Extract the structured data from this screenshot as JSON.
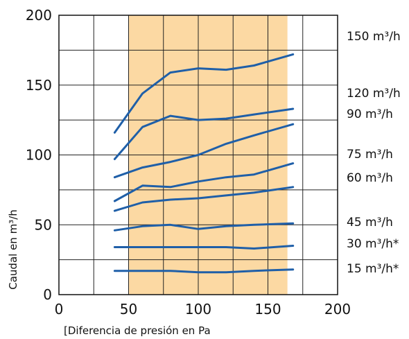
{
  "chart_data": {
    "type": "line",
    "title": "",
    "xlabel": "[Diferencia de presión en Pa",
    "ylabel": "Caudal en m³/h",
    "xlim": [
      0,
      200
    ],
    "ylim": [
      0,
      200
    ],
    "xticks": [
      "0",
      "50",
      "100",
      "150",
      "200"
    ],
    "yticks": [
      "0",
      "50",
      "100",
      "150",
      "200"
    ],
    "grid": true,
    "legend": "right, labels beside each curve",
    "highlight_band": {
      "x": [
        50,
        164
      ],
      "color": "#fcd9a3"
    },
    "line_color": "#1f5fa8",
    "x": [
      40,
      60,
      80,
      100,
      120,
      140,
      168
    ],
    "series": [
      {
        "name": "150 m³/h",
        "values": [
          116,
          144,
          159,
          162,
          161,
          164,
          172
        ]
      },
      {
        "name": "120 m³/h",
        "values": [
          97,
          120,
          128,
          125,
          126,
          129,
          133
        ]
      },
      {
        "name": "90 m³/h",
        "values": [
          84,
          91,
          95,
          100,
          108,
          114,
          122
        ]
      },
      {
        "name": "75 m³/h",
        "values": [
          67,
          78,
          77,
          81,
          84,
          86,
          94
        ]
      },
      {
        "name": "60 m³/h",
        "values": [
          60,
          66,
          68,
          69,
          71,
          73,
          77
        ]
      },
      {
        "name": "45 m³/h",
        "values": [
          46,
          49,
          50,
          47,
          49,
          50,
          51
        ]
      },
      {
        "name": "30 m³/h*",
        "values": [
          34,
          34,
          34,
          34,
          34,
          33,
          35
        ]
      },
      {
        "name": "15 m³/h*",
        "values": [
          17,
          17,
          17,
          16,
          16,
          17,
          18
        ]
      }
    ]
  }
}
